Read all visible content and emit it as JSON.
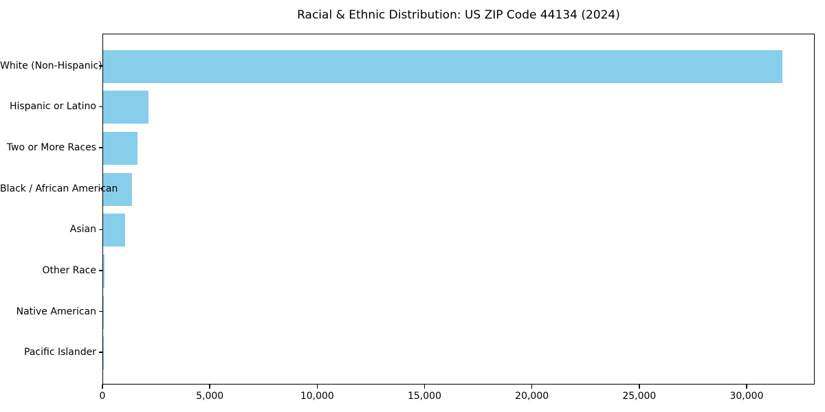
{
  "chart_data": {
    "type": "bar",
    "orientation": "horizontal",
    "title": "Racial & Ethnic Distribution: US ZIP Code 44134 (2024)",
    "categories": [
      "White (Non-Hispanic)",
      "Hispanic or Latino",
      "Two or More Races",
      "Black / African American",
      "Asian",
      "Other Race",
      "Native American",
      "Pacific Islander"
    ],
    "values": [
      31620,
      2110,
      1600,
      1335,
      1015,
      50,
      45,
      10
    ],
    "xlabel": "",
    "ylabel": "",
    "xlim": [
      0,
      33170
    ],
    "xticks": [
      0,
      5000,
      10000,
      15000,
      20000,
      25000,
      30000
    ],
    "xtick_labels": [
      "0",
      "5,000",
      "10,000",
      "15,000",
      "20,000",
      "25,000",
      "30,000"
    ],
    "bar_color": "#87CEEB",
    "frame_color": "#000000",
    "background_color": "#FFFFFF",
    "grid": false,
    "legend_position": "none",
    "bar_height_fraction": 0.8
  }
}
